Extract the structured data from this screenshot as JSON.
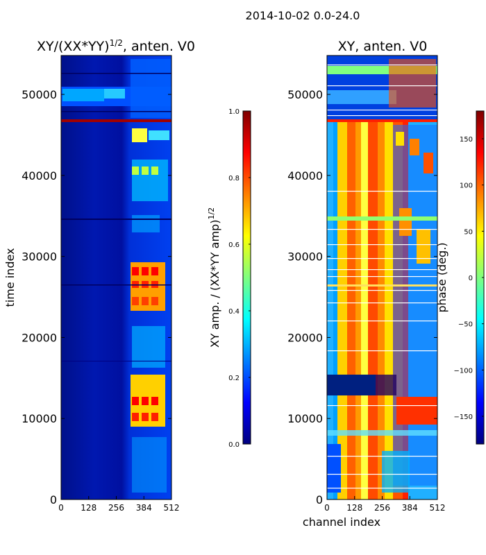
{
  "chart_data": [
    {
      "type": "heatmap",
      "suptitle": "2014-10-02 0.0-24.0",
      "title": "XY/(XX*YY)",
      "title_sup": "1/2",
      "title_suffix": ", anten. V0",
      "xlabel": "",
      "ylabel": "time index",
      "xlim": [
        0,
        512
      ],
      "ylim": [
        0,
        54800
      ],
      "xticks": [
        0,
        128,
        256,
        384,
        512
      ],
      "yticks": [
        0,
        10000,
        20000,
        30000,
        40000,
        50000
      ],
      "colorbar": {
        "label": "XY amp. / (XX*YY amp)",
        "label_sup": "1/2",
        "range": [
          0.0,
          1.0
        ],
        "ticks": [
          "0.0",
          "0.2",
          "0.4",
          "0.6",
          "0.8",
          "1.0"
        ],
        "colormap": "jet"
      }
    },
    {
      "type": "heatmap",
      "title": "XY, anten. V0",
      "xlabel": "channel index",
      "ylabel": "",
      "xlim": [
        0,
        512
      ],
      "ylim": [
        0,
        54800
      ],
      "xticks": [
        0,
        128,
        256,
        384,
        512
      ],
      "yticks": [
        0,
        10000,
        20000,
        30000,
        40000,
        50000
      ],
      "colorbar": {
        "label": "phase (deg.)",
        "range": [
          -180,
          180
        ],
        "ticks": [
          "−150",
          "−100",
          "−50",
          "0",
          "50",
          "100",
          "150"
        ],
        "colormap": "jet"
      }
    }
  ],
  "colors": {
    "jet_stops": [
      "#00007f",
      "#0000ff",
      "#007fff",
      "#00ffff",
      "#7fff7f",
      "#ffff00",
      "#ff7f00",
      "#ff0000",
      "#7f0000"
    ]
  }
}
